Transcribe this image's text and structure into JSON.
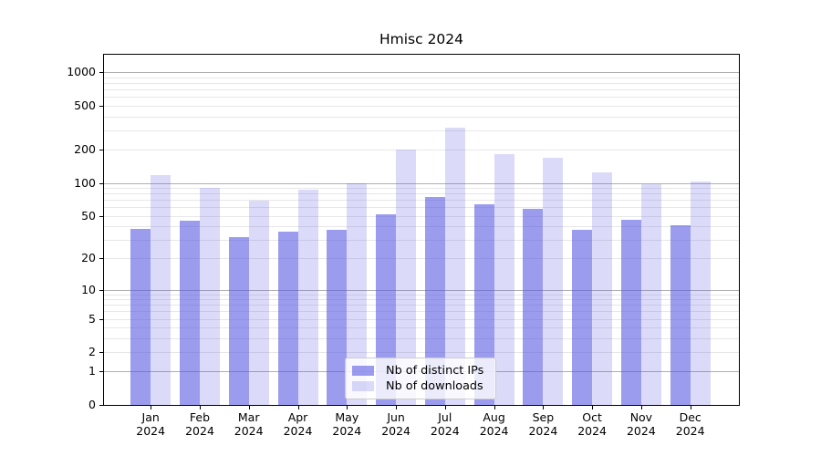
{
  "title": "Hmisc 2024",
  "chart_data": {
    "type": "bar",
    "title": "Hmisc 2024",
    "x_months": [
      "Jan",
      "Feb",
      "Mar",
      "Apr",
      "May",
      "Jun",
      "Jul",
      "Aug",
      "Sep",
      "Oct",
      "Nov",
      "Dec"
    ],
    "x_year": "2024",
    "categories": [
      "Jan 2024",
      "Feb 2024",
      "Mar 2024",
      "Apr 2024",
      "May 2024",
      "Jun 2024",
      "Jul 2024",
      "Aug 2024",
      "Sep 2024",
      "Oct 2024",
      "Nov 2024",
      "Dec 2024"
    ],
    "series": [
      {
        "key": "distinct-ips",
        "name": "Nb of distinct IPs",
        "color": "rgba(85,85,226,0.58)",
        "values": [
          38,
          45,
          32,
          36,
          37,
          52,
          75,
          64,
          58,
          37,
          46,
          41
        ]
      },
      {
        "key": "downloads",
        "name": "Nb of downloads",
        "color": "rgba(85,85,226,0.21)",
        "values": [
          118,
          90,
          69,
          87,
          100,
          200,
          320,
          183,
          168,
          125,
          98,
          102
        ]
      }
    ],
    "y_ticks": [
      1000,
      500,
      200,
      100,
      50,
      20,
      10,
      5,
      2,
      1,
      0
    ],
    "y_scale": "log10(value+1)",
    "ylim": [
      0,
      1470
    ],
    "grid": {
      "major_values": [
        1,
        10,
        100,
        1000
      ],
      "minor_values": [
        2,
        3,
        4,
        5,
        6,
        7,
        8,
        9,
        20,
        30,
        40,
        50,
        60,
        70,
        80,
        90,
        200,
        300,
        400,
        500,
        600,
        700,
        800,
        900
      ],
      "major_color": "#b0b0b0",
      "minor_color": "#e7e7e7"
    },
    "legend": {
      "position": "bottom-center",
      "items": [
        "Nb of distinct IPs",
        "Nb of downloads"
      ]
    }
  }
}
